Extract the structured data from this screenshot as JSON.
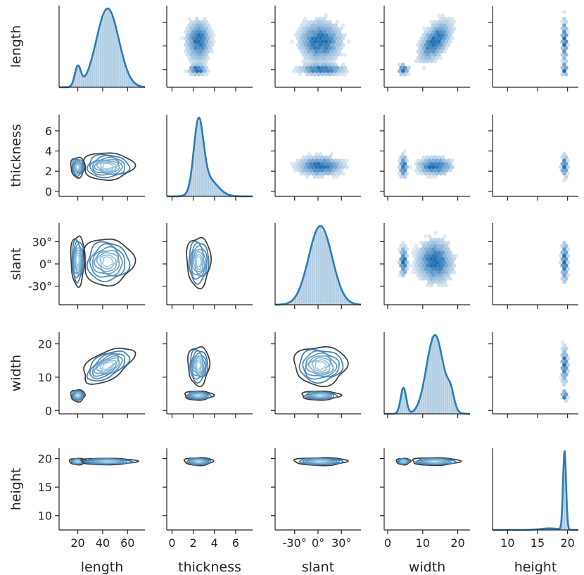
{
  "figure": {
    "type": "pairplot",
    "upper": "hexbin",
    "diagonal": "histogram + kde",
    "lower": "kde contours",
    "colors": {
      "main": "#1f6fb4",
      "line": "#2c7bb6",
      "hist": "#a8c8e0",
      "contour_outer": "#3b3b3b",
      "contour_inner": "#9ecae1",
      "axis": "#262626"
    }
  },
  "chart_data": {
    "type": "pairplot",
    "variables": [
      {
        "key": "length",
        "label": "length",
        "range": [
          5,
          74
        ],
        "ticks": [
          20,
          40,
          60
        ],
        "tick_labels": [
          "20",
          "40",
          "60"
        ],
        "modes": [
          {
            "m": 20,
            "s": 2.4,
            "w": 0.25
          },
          {
            "m": 44,
            "s": 9,
            "w": 1.0
          }
        ],
        "peak_density": 70
      },
      {
        "key": "thickness",
        "label": "thickness",
        "range": [
          -0.5,
          7.6
        ],
        "ticks": [
          0,
          2,
          4,
          6
        ],
        "tick_labels": [
          "0",
          "2",
          "4",
          "6"
        ],
        "modes": [
          {
            "m": 2.5,
            "s": 0.45,
            "w": 1.0
          },
          {
            "m": 3.4,
            "s": 0.9,
            "w": 0.25
          }
        ],
        "peak_density": 7
      },
      {
        "key": "slant",
        "label": "slant",
        "range": [
          -55,
          55
        ],
        "ticks": [
          -30,
          0,
          30
        ],
        "tick_labels": [
          "-30°",
          "0°",
          "30°"
        ],
        "modes": [
          {
            "m": 3,
            "s": 15,
            "w": 1.0
          }
        ],
        "peak_density": 42
      },
      {
        "key": "width",
        "label": "width",
        "range": [
          -1,
          23.5
        ],
        "ticks": [
          0,
          10,
          20
        ],
        "tick_labels": [
          "0",
          "10",
          "20"
        ],
        "modes": [
          {
            "m": 4.5,
            "s": 0.8,
            "w": 0.33
          },
          {
            "m": 13.5,
            "s": 2.4,
            "w": 1.0
          },
          {
            "m": 18,
            "s": 1,
            "w": 0.2
          }
        ],
        "peak_density": 22
      },
      {
        "key": "height",
        "label": "height",
        "range": [
          7.5,
          21.8
        ],
        "ticks": [
          10,
          15,
          20
        ],
        "tick_labels": [
          "10",
          "15",
          "20"
        ],
        "modes": [
          {
            "m": 19.5,
            "s": 0.25,
            "w": 1.0
          },
          {
            "m": 17,
            "s": 1.5,
            "w": 0.02
          }
        ],
        "peak_density": 22
      }
    ],
    "axis_labels_x": [
      "length",
      "thickness",
      "slant",
      "width",
      "height"
    ],
    "axis_labels_y": [
      "length",
      "thickness",
      "slant",
      "width",
      "height"
    ],
    "bivariate_clusters": {
      "length-thickness": [
        {
          "mx": 20,
          "my": 2.4,
          "sx": 2.5,
          "sy": 0.45
        },
        {
          "mx": 44,
          "my": 2.5,
          "sx": 9,
          "sy": 0.6
        }
      ],
      "length-slant": [
        {
          "mx": 20,
          "my": 5,
          "sx": 2.5,
          "sy": 15
        },
        {
          "mx": 44,
          "my": 3,
          "sx": 9,
          "sy": 14
        }
      ],
      "length-width": [
        {
          "mx": 20,
          "my": 4.5,
          "sx": 2.5,
          "sy": 0.8
        },
        {
          "mx": 44,
          "my": 13.5,
          "sx": 9,
          "sy": 2.4,
          "rho": 0.55
        }
      ],
      "length-height": [
        {
          "mx": 20,
          "my": 19.5,
          "sx": 3,
          "sy": 0.25
        },
        {
          "mx": 44,
          "my": 19.5,
          "sx": 10,
          "sy": 0.25
        }
      ],
      "thickness-slant": [
        {
          "mx": 2.5,
          "my": 3,
          "sx": 0.5,
          "sy": 15
        }
      ],
      "thickness-width": [
        {
          "mx": 2.5,
          "my": 13.5,
          "sx": 0.45,
          "sy": 2.6
        },
        {
          "mx": 2.5,
          "my": 4.5,
          "sx": 0.6,
          "sy": 0.6
        }
      ],
      "thickness-height": [
        {
          "mx": 2.5,
          "my": 19.5,
          "sx": 0.6,
          "sy": 0.3
        }
      ],
      "slant-width": [
        {
          "mx": 3,
          "my": 13.5,
          "sx": 15,
          "sy": 2.6
        },
        {
          "mx": 3,
          "my": 4.5,
          "sx": 11,
          "sy": 0.6
        }
      ],
      "slant-height": [
        {
          "mx": 3,
          "my": 19.5,
          "sx": 15,
          "sy": 0.3
        }
      ],
      "width-height": [
        {
          "mx": 4.5,
          "my": 19.5,
          "sx": 0.9,
          "sy": 0.25
        },
        {
          "mx": 13.5,
          "my": 19.5,
          "sx": 3,
          "sy": 0.3
        }
      ]
    }
  }
}
